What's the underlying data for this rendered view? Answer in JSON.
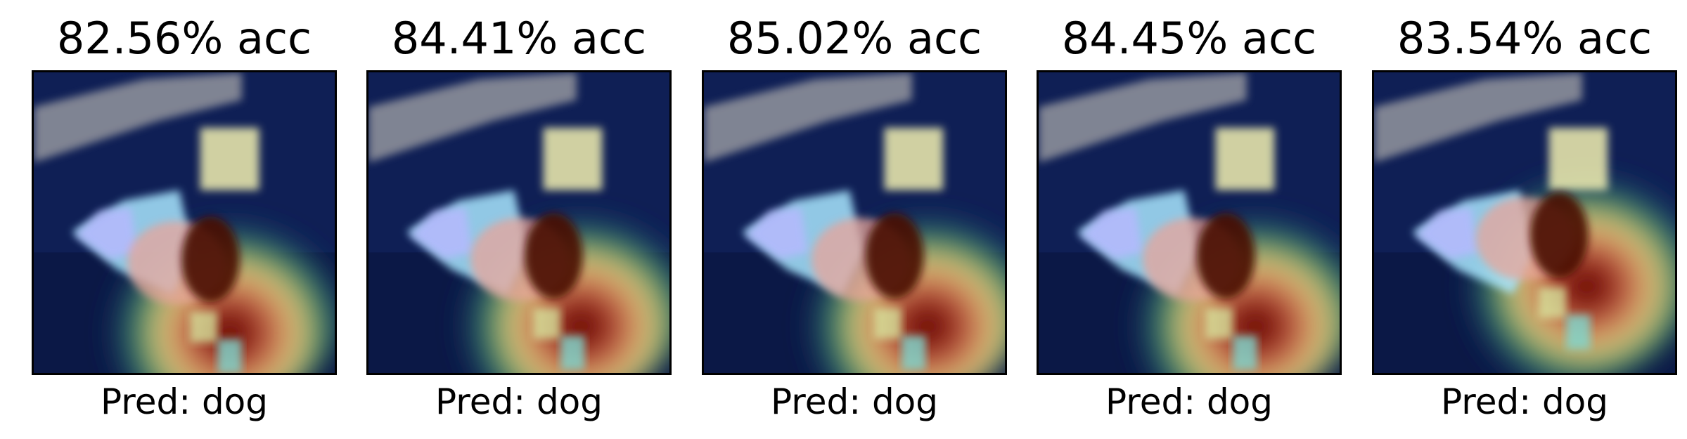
{
  "panels": [
    {
      "title": "82.56% acc",
      "caption": "Pred: dog"
    },
    {
      "title": "84.41% acc",
      "caption": "Pred: dog"
    },
    {
      "title": "85.02% acc",
      "caption": "Pred: dog"
    },
    {
      "title": "84.45% acc",
      "caption": "Pred: dog"
    },
    {
      "title": "83.54% acc",
      "caption": "Pred: dog"
    }
  ],
  "colors": {
    "background": "#0d1b4a",
    "heatmap_hot": "#8b1a0e",
    "heatmap_warm": "#e89a8e",
    "heatmap_mid": "#e8e8a0",
    "heatmap_cool": "#5fd6d0",
    "heatmap_cold": "#2b6e5a"
  }
}
